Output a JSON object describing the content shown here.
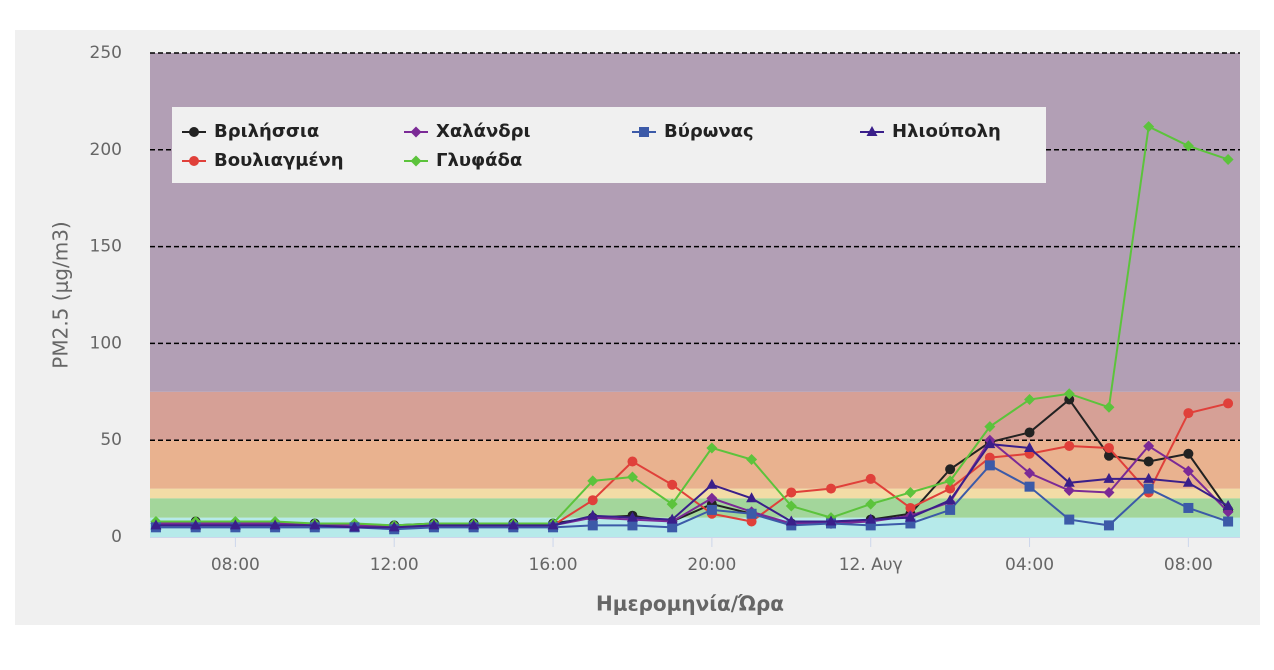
{
  "chart_data": {
    "type": "line",
    "y_axis_label": "PM2.5 (μg/m3)",
    "x_axis_label": "Ημερομηνία/Ώρα",
    "x": [
      6,
      7,
      8,
      9,
      10,
      11,
      12,
      13,
      14,
      15,
      16,
      17,
      18,
      19,
      20,
      21,
      22,
      23,
      24,
      25,
      26,
      27,
      28,
      29,
      30,
      31,
      32,
      33
    ],
    "xlim": [
      5.85,
      33.3
    ],
    "xticks": [
      {
        "value": 8,
        "label": "08:00"
      },
      {
        "value": 12,
        "label": "12:00"
      },
      {
        "value": 16,
        "label": "16:00"
      },
      {
        "value": 20,
        "label": "20:00"
      },
      {
        "value": 24,
        "label": "12. Αυγ"
      },
      {
        "value": 28,
        "label": "04:00"
      },
      {
        "value": 32,
        "label": "08:00"
      }
    ],
    "ylim": [
      0,
      250
    ],
    "yticks": [
      0,
      50,
      100,
      150,
      200,
      250
    ],
    "grid": true,
    "plot_bands": [
      {
        "from": 0,
        "to": 10,
        "color": "#b6eaea"
      },
      {
        "from": 10,
        "to": 20,
        "color": "#a3d69b"
      },
      {
        "from": 20,
        "to": 25,
        "color": "#f3dca6"
      },
      {
        "from": 25,
        "to": 50,
        "color": "#e9b28f"
      },
      {
        "from": 50,
        "to": 75,
        "color": "#d6a096"
      },
      {
        "from": 75,
        "to": 250,
        "color": "#b29fb5"
      }
    ],
    "series": [
      {
        "name": "Βριλήσσια",
        "color": "#222222",
        "marker": "circle",
        "values": [
          7,
          8,
          7,
          7,
          7,
          6,
          6,
          7,
          7,
          7,
          7,
          10,
          11,
          8,
          17,
          12,
          7,
          7,
          9,
          12,
          35,
          49,
          54,
          71,
          42,
          39,
          43,
          14
        ]
      },
      {
        "name": "Βουλιαγμένη",
        "color": "#e0403a",
        "marker": "circle",
        "values": [
          7,
          7,
          7,
          7,
          6,
          6,
          5,
          6,
          6,
          6,
          6,
          19,
          39,
          27,
          12,
          8,
          23,
          25,
          30,
          15,
          25,
          41,
          43,
          47,
          46,
          23,
          64,
          69
        ]
      },
      {
        "name": "Χαλάνδρι",
        "color": "#7b2a96",
        "marker": "diamond",
        "values": [
          7,
          7,
          7,
          7,
          6,
          6,
          5,
          6,
          6,
          6,
          6,
          10,
          9,
          8,
          20,
          13,
          7,
          7,
          8,
          11,
          18,
          50,
          33,
          24,
          23,
          47,
          34,
          13
        ]
      },
      {
        "name": "Γλυφάδα",
        "color": "#5cc33c",
        "marker": "diamond",
        "values": [
          8,
          8,
          8,
          8,
          7,
          7,
          6,
          7,
          7,
          7,
          7,
          29,
          31,
          17,
          46,
          40,
          16,
          10,
          17,
          23,
          29,
          57,
          71,
          74,
          67,
          212,
          202,
          195
        ]
      },
      {
        "name": "Βύρωνας",
        "color": "#3c5aa8",
        "marker": "square",
        "values": [
          5,
          5,
          5,
          5,
          5,
          5,
          4,
          5,
          5,
          5,
          5,
          6,
          6,
          5,
          14,
          12,
          6,
          7,
          6,
          7,
          14,
          37,
          26,
          9,
          6,
          25,
          15,
          8
        ]
      },
      {
        "name": "Ηλιούπολη",
        "color": "#3a1f8a",
        "marker": "triangle",
        "values": [
          6,
          6,
          6,
          6,
          6,
          5,
          5,
          6,
          6,
          6,
          6,
          11,
          10,
          9,
          27,
          20,
          8,
          8,
          9,
          10,
          19,
          48,
          46,
          28,
          30,
          30,
          28,
          16
        ]
      }
    ]
  }
}
